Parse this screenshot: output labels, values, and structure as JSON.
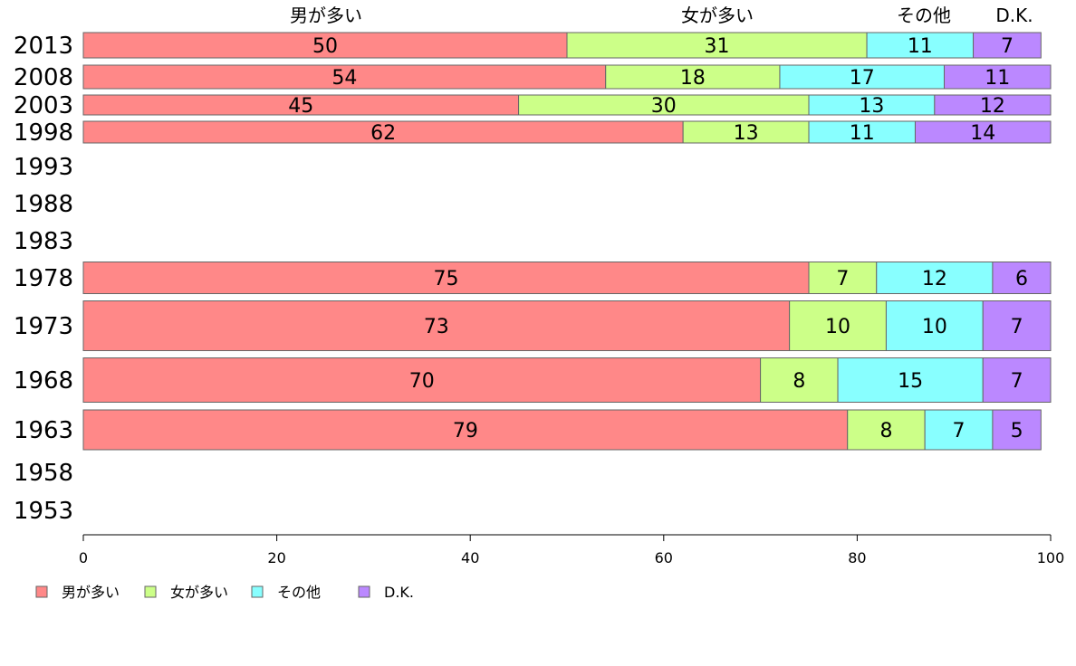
{
  "chart_data": {
    "type": "bar",
    "orientation": "horizontal",
    "stacked": true,
    "categories": [
      "2013",
      "2008",
      "2003",
      "1998",
      "1993",
      "1988",
      "1983",
      "1978",
      "1973",
      "1968",
      "1963",
      "1958",
      "1953"
    ],
    "series": [
      {
        "name": "男が多い",
        "color": "#ff8888",
        "values": [
          50,
          54,
          45,
          62,
          null,
          null,
          null,
          75,
          73,
          70,
          79,
          null,
          null
        ]
      },
      {
        "name": "女が多い",
        "color": "#ccff88",
        "values": [
          31,
          18,
          30,
          13,
          null,
          null,
          null,
          7,
          10,
          8,
          8,
          null,
          null
        ]
      },
      {
        "name": "その他",
        "color": "#88ffff",
        "values": [
          11,
          17,
          13,
          11,
          null,
          null,
          null,
          12,
          10,
          15,
          7,
          null,
          null
        ]
      },
      {
        "name": "D.K.",
        "color": "#bb88ff",
        "values": [
          7,
          11,
          12,
          14,
          null,
          null,
          null,
          6,
          7,
          7,
          5,
          null,
          null
        ]
      }
    ],
    "xlim": [
      0,
      100
    ],
    "xticks": [
      "0",
      "20",
      "40",
      "60",
      "80",
      "100"
    ],
    "top_labels": [
      "男が多い",
      "女が多い",
      "その他",
      "D.K."
    ],
    "legend": [
      "男が多い",
      "女が多い",
      "その他",
      "D.K."
    ],
    "legend_position": "bottom-left",
    "grid": false
  }
}
